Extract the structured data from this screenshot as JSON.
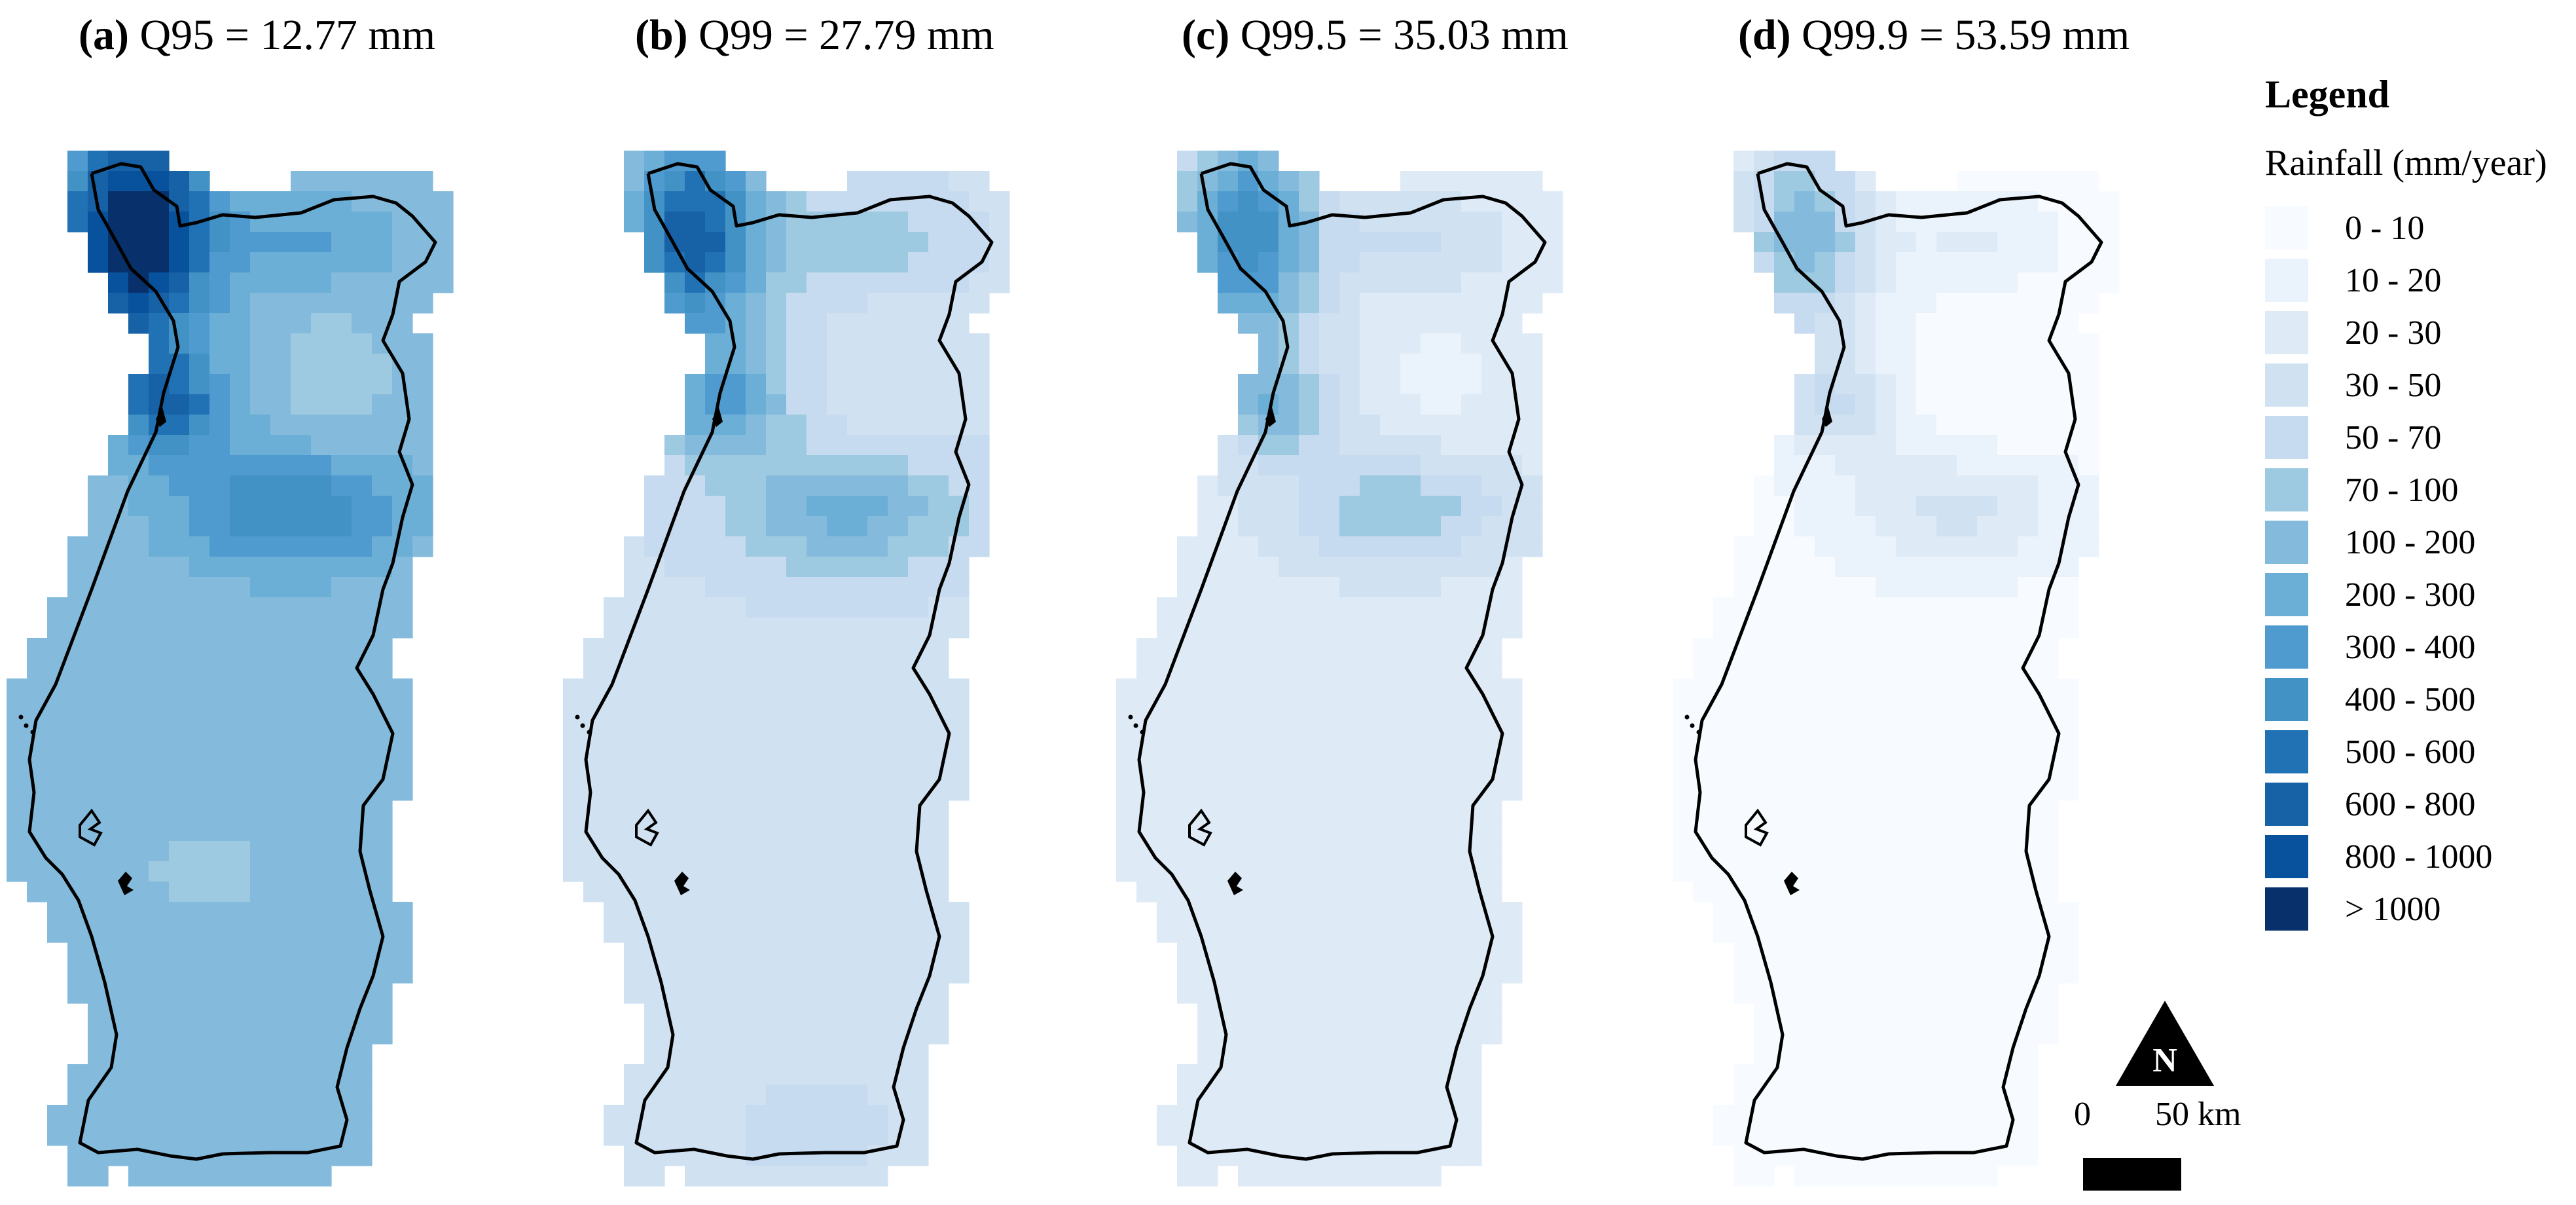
{
  "panels": [
    {
      "label": "(a)",
      "title": "Q95 = 12.77 mm"
    },
    {
      "label": "(b)",
      "title": "Q99 = 27.79 mm"
    },
    {
      "label": "(c)",
      "title": "Q99.5 = 35.03 mm"
    },
    {
      "label": "(d)",
      "title": "Q99.9 = 53.59 mm"
    }
  ],
  "legend": {
    "title": "Legend",
    "subtitle": "Rainfall (mm/year)",
    "classes": [
      {
        "range": "0 - 10",
        "color": "#f7fbff"
      },
      {
        "range": "10 - 20",
        "color": "#eaf2fb"
      },
      {
        "range": "20 - 30",
        "color": "#deebf7"
      },
      {
        "range": "30 - 50",
        "color": "#d0e2f2"
      },
      {
        "range": "50 - 70",
        "color": "#c6dbef"
      },
      {
        "range": "70 - 100",
        "color": "#9ecae1"
      },
      {
        "range": "100 - 200",
        "color": "#84bbdc"
      },
      {
        "range": "200 - 300",
        "color": "#6baed6"
      },
      {
        "range": "300 - 400",
        "color": "#4f9bcf"
      },
      {
        "range": "400 - 500",
        "color": "#4292c6"
      },
      {
        "range": "500 - 600",
        "color": "#2171b5"
      },
      {
        "range": "600 - 800",
        "color": "#1761a7"
      },
      {
        "range": "800 - 1000",
        "color": "#08519c"
      },
      {
        "range": "> 1000",
        "color": "#08306b"
      }
    ]
  },
  "north_arrow": {
    "letter": "N",
    "icon": "north-arrow-icon"
  },
  "scale_bar": {
    "start": "0",
    "end": "50 km"
  }
}
